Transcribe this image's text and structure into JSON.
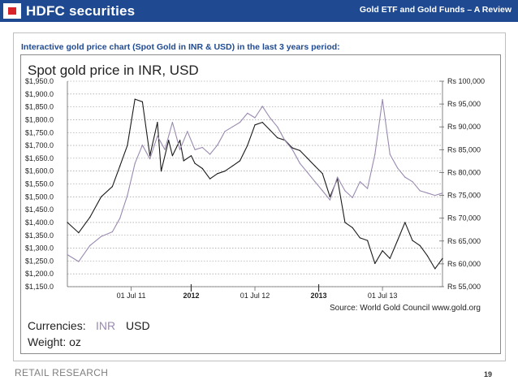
{
  "header": {
    "brand": "HDFC securities",
    "title": "Gold ETF and Gold Funds – A Review"
  },
  "caption": "Interactive gold price chart (Spot Gold in INR & USD) in the last 3 years period:",
  "footer": {
    "section": "RETAIL RESEARCH",
    "page": "19"
  },
  "colors": {
    "brand_blue": "#1f4a92",
    "brand_red": "#d9232b",
    "usd_series": "#1a1a1a",
    "inr_series": "#9a8ab0"
  },
  "chart_data": {
    "type": "line",
    "title": "Spot gold price in INR, USD",
    "source": "Source: World Gold Council www.gold.org",
    "currencies_label": "Currencies:",
    "weight_label": "Weight: oz",
    "legend": [
      {
        "name": "INR",
        "color": "#9a8ab0"
      },
      {
        "name": "USD",
        "color": "#1a1a1a"
      }
    ],
    "x_ticks": [
      "01 Jul 11",
      "2012",
      "01 Jul 12",
      "2013",
      "01 Jul 13"
    ],
    "x_ticks_bold": [
      false,
      true,
      false,
      true,
      false
    ],
    "y_left": {
      "ticks": [
        "$1,950.0",
        "$1,900.0",
        "$1,850.0",
        "$1,800.0",
        "$1,750.0",
        "$1,700.0",
        "$1,650.0",
        "$1,600.0",
        "$1,550.0",
        "$1,500.0",
        "$1,450.0",
        "$1,400.0",
        "$1,350.0",
        "$1,300.0",
        "$1,250.0",
        "$1,200.0",
        "$1,150.0"
      ],
      "range": [
        1150,
        1950
      ]
    },
    "y_right": {
      "ticks": [
        "Rs 100,000",
        "Rs 95,000",
        "Rs 90,000",
        "Rs 85,000",
        "Rs 80,000",
        "Rs 75,000",
        "Rs 70,000",
        "Rs 65,000",
        "Rs 60,000",
        "Rs 55,000"
      ],
      "range": [
        55000,
        100000
      ]
    },
    "grid": "horizontal dotted",
    "series": [
      {
        "name": "USD",
        "axis": "left",
        "color": "#1a1a1a",
        "x": [
          0,
          3,
          6,
          9,
          12,
          14,
          16,
          18,
          20,
          22,
          24,
          25,
          27,
          28,
          30,
          31,
          33,
          34,
          36,
          38,
          40,
          42,
          44,
          46,
          48,
          50,
          52,
          54,
          56,
          58,
          60,
          62,
          64,
          66,
          68,
          70,
          72,
          74,
          76,
          78,
          80,
          82,
          84,
          86,
          88,
          90,
          92,
          94,
          96,
          98,
          100
        ],
        "values": [
          1400,
          1360,
          1420,
          1500,
          1540,
          1620,
          1700,
          1880,
          1870,
          1660,
          1790,
          1600,
          1720,
          1660,
          1720,
          1640,
          1660,
          1630,
          1610,
          1570,
          1590,
          1600,
          1620,
          1640,
          1700,
          1780,
          1790,
          1760,
          1730,
          1720,
          1690,
          1680,
          1650,
          1620,
          1590,
          1500,
          1570,
          1400,
          1380,
          1340,
          1330,
          1240,
          1290,
          1260,
          1330,
          1400,
          1330,
          1310,
          1270,
          1220,
          1260
        ]
      },
      {
        "name": "INR",
        "axis": "right",
        "color": "#9a8ab0",
        "x": [
          0,
          3,
          6,
          9,
          12,
          14,
          16,
          18,
          20,
          22,
          24,
          26,
          28,
          30,
          32,
          34,
          36,
          38,
          40,
          42,
          44,
          46,
          48,
          50,
          52,
          54,
          56,
          58,
          60,
          62,
          64,
          66,
          68,
          70,
          72,
          74,
          76,
          78,
          80,
          82,
          84,
          86,
          88,
          90,
          92,
          94,
          96,
          98,
          100
        ],
        "values": [
          62000,
          60500,
          64000,
          66000,
          67000,
          70000,
          75000,
          82000,
          86000,
          83000,
          88000,
          85000,
          91000,
          85000,
          89000,
          85000,
          85500,
          84000,
          86000,
          89000,
          90000,
          91000,
          93000,
          92000,
          94500,
          92000,
          90000,
          87000,
          85000,
          82000,
          80000,
          78000,
          76000,
          74000,
          79000,
          76000,
          74500,
          78000,
          76500,
          84000,
          96000,
          84000,
          81000,
          79000,
          78000,
          76000,
          75500,
          75000,
          75500
        ]
      }
    ]
  }
}
